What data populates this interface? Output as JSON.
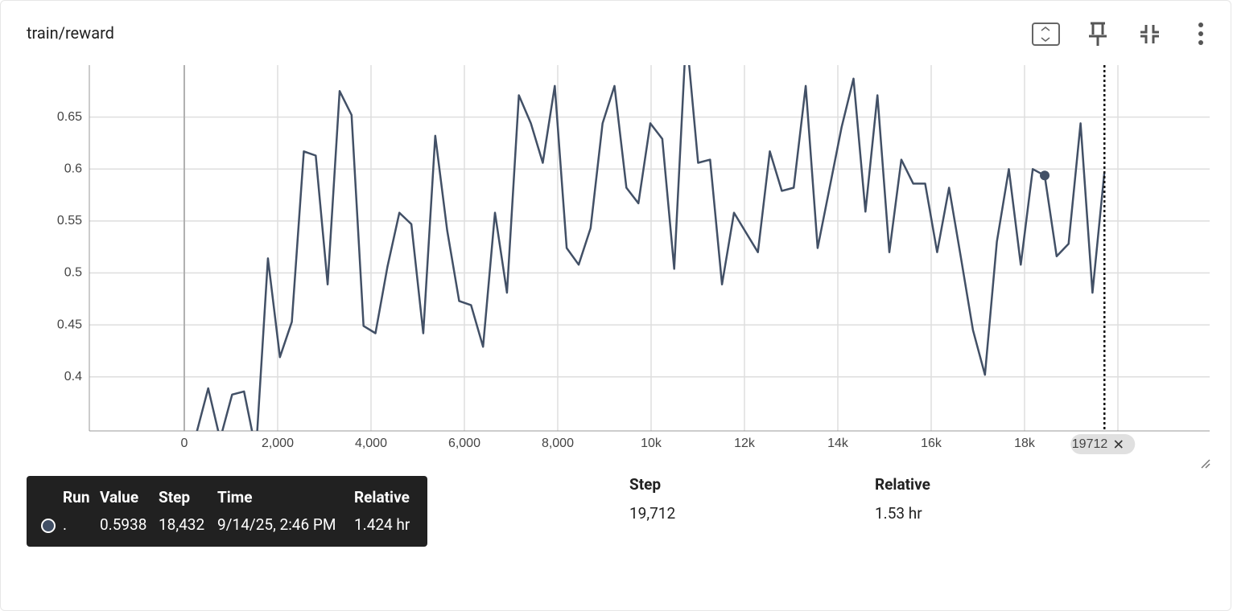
{
  "chart_data": {
    "type": "line",
    "title": "train/reward",
    "x": [
      0,
      256,
      512,
      768,
      1024,
      1280,
      1536,
      1792,
      2048,
      2304,
      2560,
      2816,
      3072,
      3328,
      3584,
      3840,
      4096,
      4352,
      4608,
      4864,
      5120,
      5376,
      5632,
      5888,
      6144,
      6400,
      6656,
      6912,
      7168,
      7424,
      7680,
      7936,
      8192,
      8448,
      8704,
      8960,
      9216,
      9472,
      9728,
      9984,
      10240,
      10496,
      10752,
      11008,
      11264,
      11520,
      11776,
      12032,
      12288,
      12544,
      12800,
      13056,
      13312,
      13568,
      13824,
      14080,
      14336,
      14592,
      14848,
      15104,
      15360,
      15616,
      15872,
      16128,
      16384,
      16640,
      16896,
      17152,
      17408,
      17664,
      17920,
      18176,
      18432,
      18688,
      18944,
      19200,
      19456,
      19712
    ],
    "series": [
      {
        "name": ".",
        "color": "#425066",
        "values": [
          0.298,
          0.345,
          0.389,
          0.34,
          0.383,
          0.386,
          0.329,
          0.514,
          0.419,
          0.453,
          0.617,
          0.613,
          0.489,
          0.675,
          0.652,
          0.449,
          0.442,
          0.506,
          0.558,
          0.547,
          0.442,
          0.632,
          0.541,
          0.473,
          0.469,
          0.429,
          0.558,
          0.481,
          0.671,
          0.644,
          0.606,
          0.68,
          0.524,
          0.508,
          0.543,
          0.644,
          0.68,
          0.582,
          0.567,
          0.644,
          0.629,
          0.504,
          0.731,
          0.606,
          0.609,
          0.489,
          0.558,
          0.539,
          0.52,
          0.617,
          0.579,
          0.582,
          0.68,
          0.524,
          0.582,
          0.64,
          0.687,
          0.559,
          0.671,
          0.52,
          0.609,
          0.586,
          0.586,
          0.52,
          0.582,
          0.514,
          0.445,
          0.402,
          0.53,
          0.6,
          0.508,
          0.6,
          0.5938,
          0.516,
          0.528,
          0.644,
          0.481,
          0.5977
        ]
      }
    ],
    "xlim": [
      -2034,
      21966
    ],
    "ylim": [
      0.348,
      0.7
    ],
    "xticks": [
      0,
      {
        "value": 2000,
        "label": "2,000"
      },
      {
        "value": 4000,
        "label": "4,000"
      },
      {
        "value": 6000,
        "label": "6,000"
      },
      {
        "value": 8000,
        "label": "8,000"
      },
      {
        "value": 10000,
        "label": "10k"
      },
      {
        "value": 12000,
        "label": "12k"
      },
      {
        "value": 14000,
        "label": "14k"
      },
      {
        "value": 16000,
        "label": "16k"
      },
      {
        "value": 18000,
        "label": "18k"
      },
      {
        "value": 20000,
        "label": "20k"
      }
    ],
    "yticks": [
      0.4,
      0.45,
      0.5,
      0.55,
      0.6,
      0.65
    ],
    "grid": true,
    "cursor_step": 19712,
    "hover_index": 72
  },
  "table": {
    "columns": [
      "Run ↑",
      "Value",
      "Step",
      "Relative"
    ],
    "rows": [
      [
        ".",
        "0.5977",
        "19,712",
        "1.53 hr"
      ]
    ]
  },
  "tooltip": {
    "columns": [
      "Run",
      "Value",
      "Step",
      "Time",
      "Relative"
    ],
    "rows": [
      [
        ".",
        "0.5938",
        "18,432",
        "9/14/25, 2:46 PM",
        "1.424 hr"
      ]
    ]
  }
}
